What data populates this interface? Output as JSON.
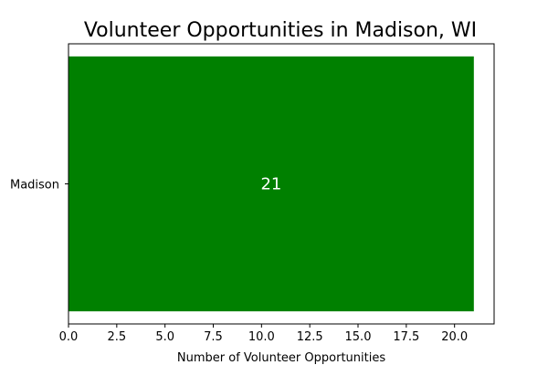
{
  "chart_data": {
    "type": "bar",
    "orientation": "horizontal",
    "title": "Volunteer Opportunities in Madison, WI",
    "xlabel": "Number of Volunteer Opportunities",
    "ylabel": "",
    "categories": [
      "Madison"
    ],
    "values": [
      21
    ],
    "data_labels": [
      "21"
    ],
    "xlim": [
      0,
      22.05
    ],
    "x_ticks": [
      0,
      2.5,
      5,
      7.5,
      10,
      12.5,
      15,
      17.5,
      20
    ],
    "x_tick_labels": [
      "0.0",
      "2.5",
      "5.0",
      "7.5",
      "10.0",
      "12.5",
      "15.0",
      "17.5",
      "20.0"
    ],
    "bar_color": "#008000",
    "grid": false,
    "legend": "none"
  }
}
